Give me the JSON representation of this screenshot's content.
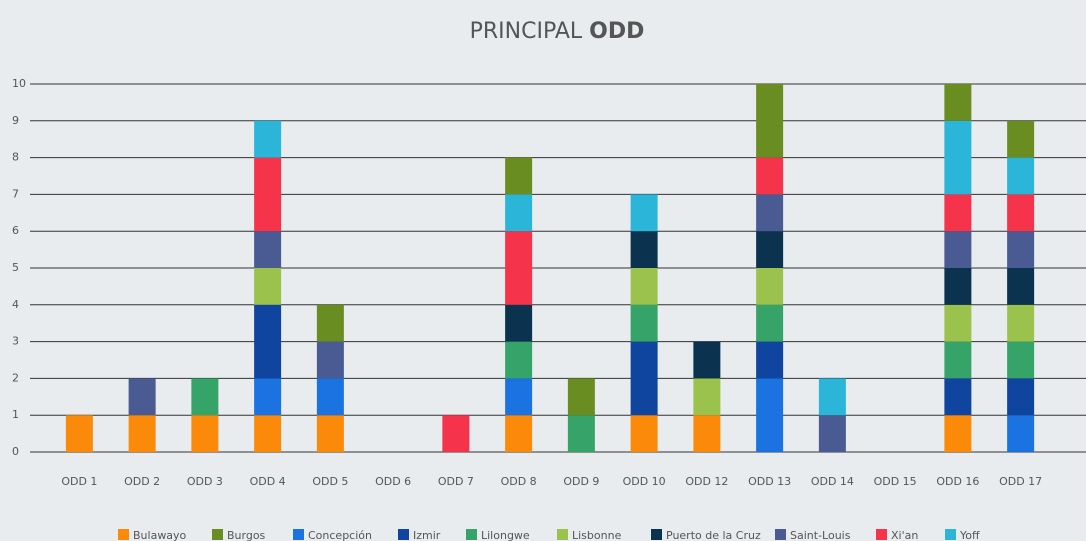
{
  "chart_data": {
    "type": "stacked-bar",
    "title": [
      "PRINCIPAL",
      "ODD"
    ],
    "categories": [
      "ODD 1",
      "ODD 2",
      "ODD 3",
      "ODD 4",
      "ODD 5",
      "ODD 6",
      "ODD 7",
      "ODD 8",
      "ODD 9",
      "ODD 10",
      "ODD 12",
      "ODD 13",
      "ODD 14",
      "ODD 15",
      "ODD 16",
      "ODD 17"
    ],
    "series": [
      {
        "name": "Bulawayo",
        "color": "#fb8a0a",
        "values": [
          1,
          1,
          1,
          1,
          1,
          0,
          0,
          1,
          0,
          1,
          1,
          0,
          0,
          0,
          1,
          0
        ]
      },
      {
        "name": "Burgos",
        "color": "#6a8d22",
        "values": [
          0,
          0,
          0,
          0,
          1,
          0,
          0,
          1,
          1,
          0,
          0,
          2,
          0,
          0,
          1,
          1
        ]
      },
      {
        "name": "Concepción",
        "color": "#1a73e0",
        "values": [
          0,
          0,
          0,
          1,
          1,
          0,
          0,
          1,
          0,
          0,
          0,
          2,
          0,
          0,
          0,
          1
        ]
      },
      {
        "name": "Izmir",
        "color": "#0f459f",
        "values": [
          0,
          0,
          0,
          2,
          0,
          0,
          0,
          0,
          0,
          2,
          0,
          1,
          0,
          0,
          1,
          1
        ]
      },
      {
        "name": "Lilongwe",
        "color": "#36a468",
        "values": [
          0,
          0,
          1,
          0,
          0,
          0,
          0,
          1,
          1,
          1,
          0,
          1,
          0,
          0,
          1,
          1
        ]
      },
      {
        "name": "Lisbonne",
        "color": "#9cc24e",
        "values": [
          0,
          0,
          0,
          1,
          0,
          0,
          0,
          0,
          0,
          1,
          1,
          1,
          0,
          0,
          1,
          1
        ]
      },
      {
        "name": "Puerto de la Cruz",
        "color": "#0b3350",
        "values": [
          0,
          0,
          0,
          0,
          0,
          0,
          0,
          1,
          0,
          1,
          1,
          1,
          0,
          0,
          1,
          1
        ]
      },
      {
        "name": "Saint-Louis",
        "color": "#4a5a92",
        "values": [
          0,
          1,
          0,
          1,
          1,
          0,
          0,
          0,
          0,
          0,
          0,
          1,
          1,
          0,
          1,
          1
        ]
      },
      {
        "name": "Xi'an",
        "color": "#f5334a",
        "values": [
          0,
          0,
          0,
          2,
          0,
          0,
          1,
          2,
          0,
          0,
          0,
          1,
          0,
          0,
          1,
          1
        ]
      },
      {
        "name": "Yoff",
        "color": "#2bb5d8",
        "values": [
          0,
          0,
          0,
          1,
          0,
          0,
          0,
          1,
          0,
          1,
          0,
          0,
          1,
          0,
          2,
          1
        ]
      }
    ],
    "ylim": [
      0,
      10
    ],
    "yticks": [
      0,
      1,
      2,
      3,
      4,
      5,
      6,
      7,
      8,
      9,
      10
    ],
    "grid": true,
    "legend": "bottom"
  }
}
